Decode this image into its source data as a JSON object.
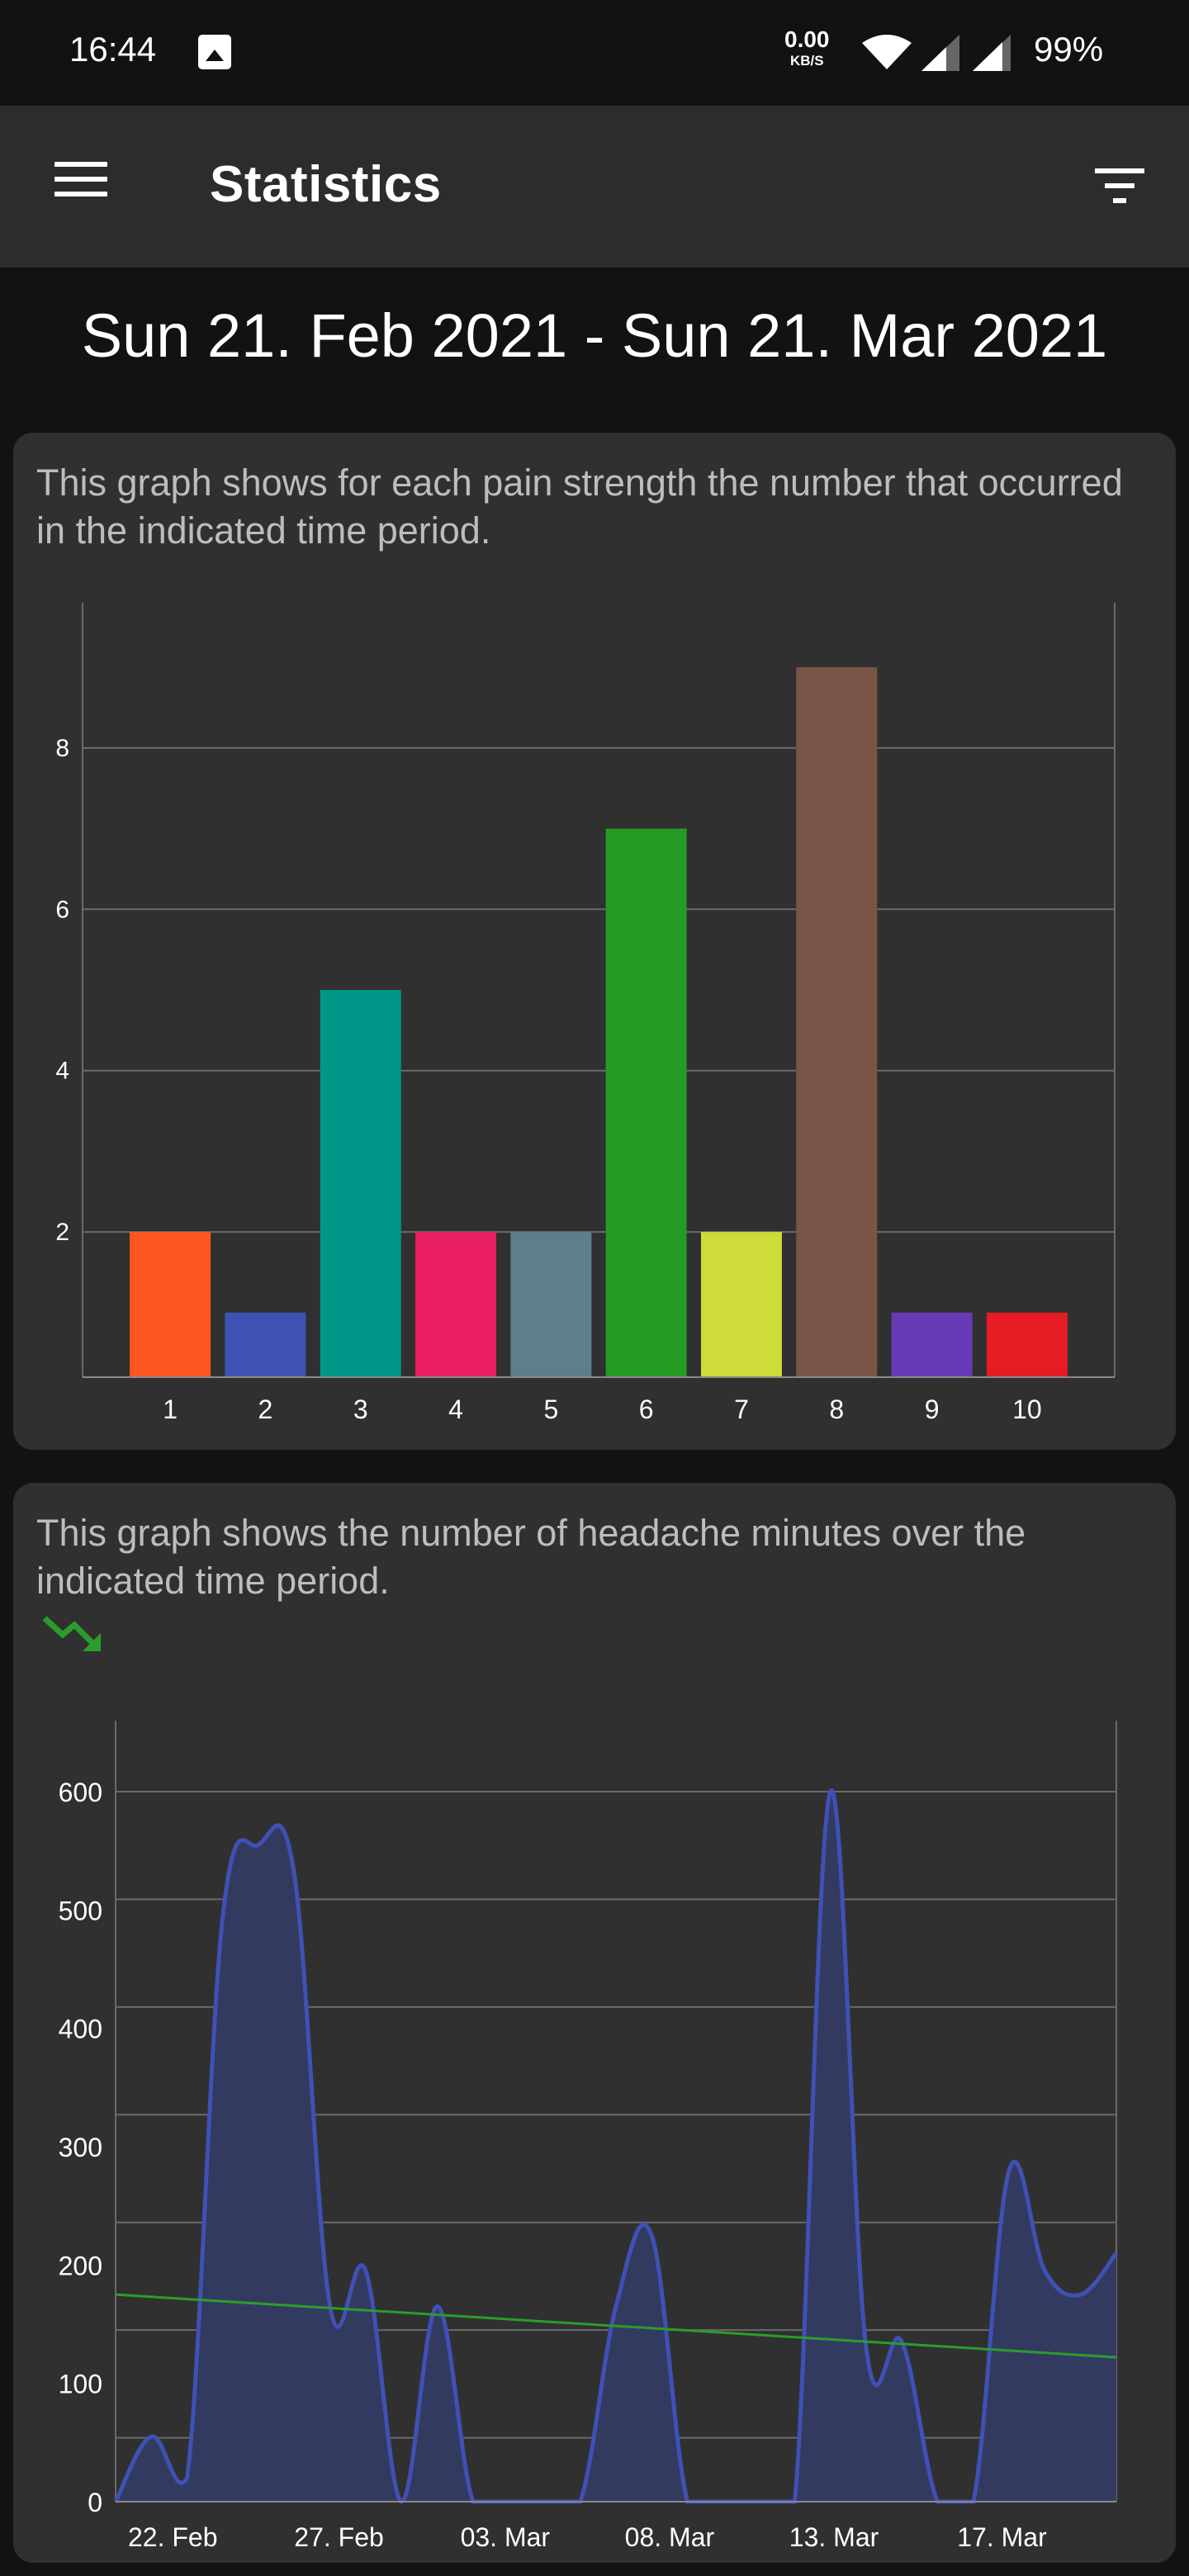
{
  "status_bar": {
    "time": "16:44",
    "net_speed": "0.00",
    "net_unit": "KB/S",
    "battery": "99%"
  },
  "app_bar": {
    "title": "Statistics"
  },
  "date_range": "Sun 21. Feb 2021 - Sun 21. Mar 2021",
  "cards": [
    {
      "description": "This graph shows for each pain strength the number that occurred in the indicated time period."
    },
    {
      "description": "This graph shows the number of headache minutes over the indicated time period.",
      "trend_icon": "trending-down-icon",
      "trend_color": "#2a9d2a"
    }
  ],
  "chart_data": [
    {
      "type": "bar",
      "title": "",
      "xlabel": "",
      "ylabel": "",
      "categories": [
        "1",
        "2",
        "3",
        "4",
        "5",
        "6",
        "7",
        "8",
        "9",
        "10"
      ],
      "values": [
        2,
        1,
        5,
        2,
        2,
        7,
        2,
        9,
        1,
        1
      ],
      "colors": [
        "#FF5722",
        "#3F51B5",
        "#009688",
        "#E91E63",
        "#607D8B",
        "#259B24",
        "#CDDC39",
        "#795548",
        "#673AB7",
        "#E51C23"
      ],
      "yticks": [
        2,
        4,
        6,
        8
      ],
      "ylim": [
        0.2,
        9.8
      ],
      "grid": true
    },
    {
      "type": "area",
      "title": "",
      "xlabel": "",
      "ylabel": "",
      "x_start": "21. Feb 2021",
      "x_tick_labels": [
        "22. Feb",
        "27. Feb",
        "03. Mar",
        "08. Mar",
        "13. Mar",
        "17. Mar"
      ],
      "x_tick_days": [
        1.6,
        6.25,
        10.9,
        15.5,
        20.1,
        24.8
      ],
      "values": [
        0,
        55,
        20,
        495,
        555,
        530,
        165,
        195,
        0,
        165,
        0,
        0,
        0,
        0,
        165,
        225,
        0,
        0,
        0,
        0,
        600,
        130,
        135,
        0,
        0,
        280,
        195,
        175,
        210
      ],
      "yticks": [
        0,
        100,
        200,
        300,
        400,
        500,
        600
      ],
      "ylim": [
        0,
        660
      ],
      "line_color": "#3F51B5",
      "fill_color": "#333a60",
      "trend": {
        "start": 175,
        "end": 122,
        "color": "#2a9d2a"
      },
      "grid": true
    }
  ]
}
